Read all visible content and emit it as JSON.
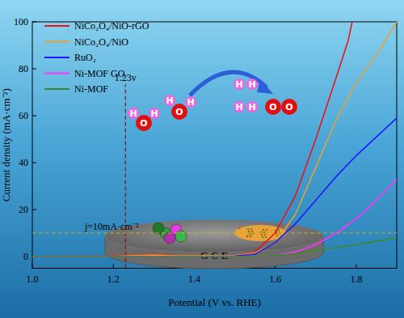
{
  "chart_data": {
    "type": "line",
    "x_label": "Potential (V vs. RHE)",
    "y_label": "Current density (mA·cm⁻²)",
    "xlim": [
      1.0,
      1.9
    ],
    "ylim": [
      -5,
      100
    ],
    "xticks": [
      {
        "value": 1.0,
        "label": "1.0"
      },
      1.2,
      1.4,
      1.6,
      1.8
    ],
    "yticks": [
      0,
      20,
      40,
      60,
      80,
      100
    ],
    "legend": "upper left",
    "series": [
      {
        "name": "NiCo₂O₄/NiO-rGO",
        "color": "#e8141b",
        "x": [
          1.0,
          1.2,
          1.25,
          1.3,
          1.35,
          1.4,
          1.5,
          1.55,
          1.6,
          1.65,
          1.7,
          1.75,
          1.78,
          1.79
        ],
        "values": [
          0,
          0.2,
          0.6,
          1.0,
          0.5,
          0.4,
          0.5,
          2,
          10,
          26,
          50,
          76,
          92,
          100
        ]
      },
      {
        "name": "NiCo₂O₄/NiO",
        "color": "#e3a33a",
        "x": [
          1.0,
          1.2,
          1.25,
          1.3,
          1.35,
          1.4,
          1.5,
          1.55,
          1.6,
          1.65,
          1.7,
          1.75,
          1.8,
          1.85,
          1.9
        ],
        "values": [
          0,
          0.1,
          0.4,
          0.7,
          0.3,
          0.3,
          0.5,
          1.5,
          6,
          18,
          38,
          58,
          74,
          86,
          100
        ]
      },
      {
        "name": "RuO₂",
        "color": "#1a1aff",
        "x": [
          1.0,
          1.4,
          1.5,
          1.55,
          1.6,
          1.65,
          1.7,
          1.75,
          1.8,
          1.85,
          1.9
        ],
        "values": [
          0,
          0,
          0.2,
          1,
          6,
          14,
          24,
          34,
          43,
          51,
          59
        ]
      },
      {
        "name": "Ni-MOF GO",
        "color": "#ff33ff",
        "x": [
          1.0,
          1.5,
          1.6,
          1.65,
          1.7,
          1.75,
          1.8,
          1.85,
          1.9
        ],
        "values": [
          0,
          0,
          0.5,
          2,
          5,
          10,
          16,
          24,
          33
        ]
      },
      {
        "name": "Ni-MOF",
        "color": "#3a8a2a",
        "x": [
          1.0,
          1.5,
          1.6,
          1.65,
          1.7,
          1.75,
          1.8,
          1.85,
          1.9
        ],
        "values": [
          0,
          0,
          0.5,
          1.2,
          2.5,
          3.8,
          5,
          6.5,
          8
        ]
      }
    ],
    "annotations": [
      {
        "type": "vline",
        "x": 1.23,
        "label": "1.23v"
      },
      {
        "type": "hline",
        "y": 10,
        "label": "j=10mA·cm⁻²"
      }
    ]
  },
  "illustration": {
    "electrode": "G C E",
    "reactants": [
      [
        "H",
        "O",
        "H"
      ],
      [
        "H",
        "O",
        "H"
      ]
    ],
    "products": [
      [
        "H",
        "H"
      ],
      [
        "H",
        "H"
      ],
      [
        "O",
        "O"
      ]
    ]
  }
}
